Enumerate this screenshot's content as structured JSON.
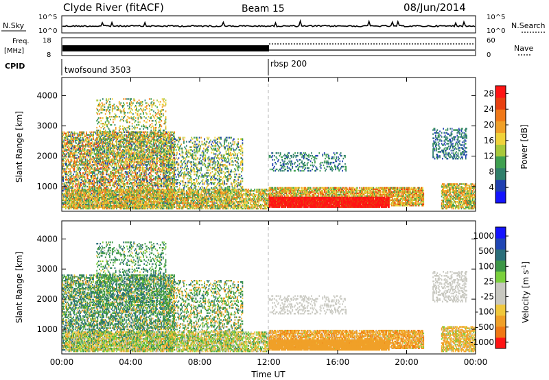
{
  "header": {
    "station": "Clyde River (fitACF)",
    "beam": "Beam 15",
    "date": "08/Jun/2014"
  },
  "panels": {
    "nsky": {
      "label": "N.Sky",
      "ticks_left": [
        "10^5",
        "10^0"
      ],
      "ticks_right": [
        "10^5",
        "10^0"
      ],
      "legend": "N.Search"
    },
    "freq": {
      "label_top": "Freq.",
      "label_bottom": "[MHz]",
      "ticks_left": [
        "18",
        "8"
      ],
      "ticks_right": [
        "60",
        "0"
      ],
      "legend": "Nave"
    },
    "cpid": {
      "label": "CPID",
      "segments": [
        "twofsound 3503",
        "rbsp 200"
      ]
    }
  },
  "colors": {
    "power_scale": [
      "#1414ff",
      "#1f3fb0",
      "#2f7f6a",
      "#3fa050",
      "#a8c83a",
      "#f0d23a",
      "#f0a028",
      "#f07818",
      "#e84010",
      "#ff1414"
    ],
    "velocity_scale": [
      "#1414ff",
      "#1f46b4",
      "#2a6e7a",
      "#3c9646",
      "#7ad03c",
      "#c8c8c0",
      "#c8c8c0",
      "#f0c83c",
      "#f0a028",
      "#f07814",
      "#ff1414"
    ],
    "cpid_change_line": "#b4b4b4"
  },
  "chart_data": [
    {
      "type": "heatmap",
      "title": "",
      "xlabel": "",
      "ylabel": "Slant Range [km]",
      "xlim": [
        "00:00",
        "24:00"
      ],
      "ylim": [
        180,
        4600
      ],
      "x_ticks": [
        "00:00",
        "04:00",
        "08:00",
        "12:00",
        "16:00",
        "20:00",
        "00:00"
      ],
      "y_ticks": [
        1000,
        2000,
        3000,
        4000
      ],
      "colorbar": {
        "label": "Power [dB]",
        "ticks": [
          4,
          8,
          12,
          16,
          20,
          24,
          28
        ],
        "range": [
          0,
          30
        ]
      },
      "grid": false
    },
    {
      "type": "heatmap",
      "title": "",
      "xlabel": "Time UT",
      "ylabel": "Slant Range [km]",
      "xlim": [
        "00:00",
        "24:00"
      ],
      "ylim": [
        180,
        4600
      ],
      "x_ticks": [
        "00:00",
        "04:00",
        "08:00",
        "12:00",
        "16:00",
        "20:00",
        "00:00"
      ],
      "y_ticks": [
        1000,
        2000,
        3000,
        4000
      ],
      "colorbar": {
        "label": "Velocity [m s-1]",
        "ticks": [
          "1000",
          "500",
          "100",
          "25",
          "-25",
          "-100",
          "-500",
          "-1000"
        ]
      },
      "grid": false
    }
  ],
  "scatter_regions": [
    {
      "name": "early-patchy",
      "t0": 0.0,
      "t1": 6.5,
      "r0": 300,
      "r1": 2800,
      "density": 0.55,
      "pmin": 4,
      "pmax": 26,
      "vmin": -200,
      "vmax": 800
    },
    {
      "name": "early-high",
      "t0": 2.0,
      "t1": 6.0,
      "r0": 1800,
      "r1": 3900,
      "density": 0.22,
      "pmin": 6,
      "pmax": 22,
      "vmin": -50,
      "vmax": 700
    },
    {
      "name": "morning",
      "t0": 6.0,
      "t1": 10.5,
      "r0": 300,
      "r1": 2600,
      "density": 0.3,
      "pmin": 4,
      "pmax": 20,
      "vmin": -300,
      "vmax": 600
    },
    {
      "name": "band-low",
      "t0": 0.2,
      "t1": 12.0,
      "r0": 250,
      "r1": 900,
      "density": 0.6,
      "pmin": 8,
      "pmax": 24,
      "vmin": -150,
      "vmax": 150
    },
    {
      "name": "afternoon-band",
      "t0": 12.0,
      "t1": 21.0,
      "r0": 350,
      "r1": 950,
      "density": 0.8,
      "pmin": 10,
      "pmax": 26,
      "vmin": -600,
      "vmax": 50
    },
    {
      "name": "strong-core",
      "t0": 12.0,
      "t1": 19.0,
      "r0": 300,
      "r1": 650,
      "density": 0.95,
      "pmin": 26,
      "pmax": 30,
      "vmin": -500,
      "vmax": -100
    },
    {
      "name": "mid-range",
      "t0": 12.0,
      "t1": 16.5,
      "r0": 1500,
      "r1": 2100,
      "density": 0.22,
      "pmin": 4,
      "pmax": 12,
      "vmin": -25,
      "vmax": 25
    },
    {
      "name": "late-high",
      "t0": 21.5,
      "t1": 23.5,
      "r0": 1900,
      "r1": 2900,
      "density": 0.35,
      "pmin": 4,
      "pmax": 10,
      "vmin": -25,
      "vmax": 25
    },
    {
      "name": "late-low",
      "t0": 22.0,
      "t1": 24.0,
      "r0": 250,
      "r1": 1100,
      "density": 0.7,
      "pmin": 8,
      "pmax": 24,
      "vmin": -400,
      "vmax": 100
    }
  ]
}
